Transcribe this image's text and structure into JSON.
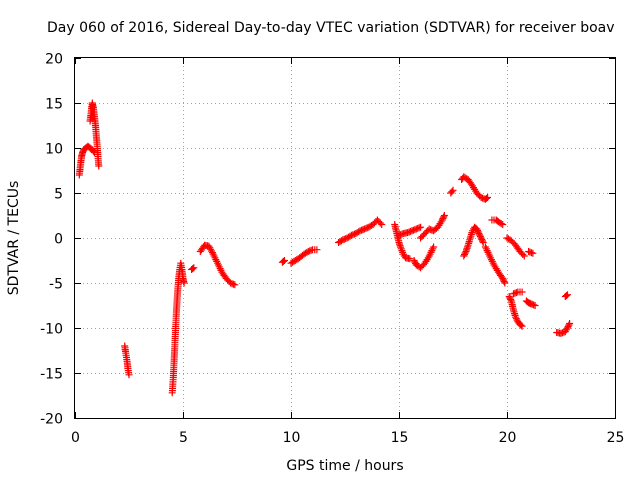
{
  "chart_data": {
    "type": "scatter",
    "title": "Day 060 of 2016, Sidereal Day-to-day VTEC variation (SDTVAR) for receiver boav",
    "xlabel": "GPS time / hours",
    "ylabel": "SDTVAR / TECUs",
    "xlim": [
      0,
      25
    ],
    "ylim": [
      -20,
      20
    ],
    "xticks": [
      0,
      5,
      10,
      15,
      20,
      25
    ],
    "yticks": [
      -20,
      -15,
      -10,
      -5,
      0,
      5,
      10,
      15,
      20
    ],
    "grid": true,
    "marker": "+",
    "color": "#ff0000",
    "series": [
      {
        "name": "SDTVAR",
        "segments": [
          [
            [
              0.2,
              7.0
            ],
            [
              0.25,
              8.0
            ],
            [
              0.3,
              9.0
            ],
            [
              0.35,
              9.5
            ],
            [
              0.4,
              9.8
            ],
            [
              0.5,
              10.0
            ],
            [
              0.6,
              10.2
            ],
            [
              0.7,
              10.0
            ],
            [
              0.8,
              9.8
            ],
            [
              0.9,
              9.5
            ]
          ],
          [
            [
              0.7,
              13.0
            ],
            [
              0.75,
              14.0
            ],
            [
              0.8,
              15.0
            ],
            [
              0.85,
              14.5
            ],
            [
              0.9,
              13.5
            ],
            [
              0.95,
              12.5
            ],
            [
              1.0,
              11.0
            ],
            [
              1.05,
              9.5
            ],
            [
              1.1,
              8.0
            ]
          ],
          [
            [
              2.3,
              -12.0
            ],
            [
              2.35,
              -12.8
            ],
            [
              2.4,
              -13.5
            ],
            [
              2.45,
              -14.5
            ],
            [
              2.5,
              -15.2
            ]
          ],
          [
            [
              4.5,
              -17.2
            ],
            [
              4.55,
              -15.5
            ],
            [
              4.6,
              -13.0
            ],
            [
              4.65,
              -10.5
            ],
            [
              4.7,
              -8.0
            ],
            [
              4.75,
              -6.0
            ],
            [
              4.8,
              -4.5
            ],
            [
              4.85,
              -3.5
            ],
            [
              4.9,
              -2.8
            ],
            [
              4.95,
              -3.5
            ],
            [
              5.0,
              -4.5
            ],
            [
              5.05,
              -5.0
            ]
          ],
          [
            [
              5.4,
              -3.5
            ],
            [
              5.5,
              -3.3
            ]
          ],
          [
            [
              5.8,
              -1.5
            ],
            [
              6.0,
              -0.8
            ],
            [
              6.2,
              -0.9
            ],
            [
              6.4,
              -1.8
            ],
            [
              6.6,
              -2.8
            ],
            [
              6.8,
              -3.8
            ],
            [
              7.0,
              -4.5
            ],
            [
              7.2,
              -5.0
            ],
            [
              7.4,
              -5.2
            ]
          ],
          [
            [
              9.6,
              -2.7
            ],
            [
              9.7,
              -2.5
            ]
          ],
          [
            [
              10.0,
              -2.8
            ],
            [
              10.2,
              -2.5
            ],
            [
              10.4,
              -2.2
            ],
            [
              10.6,
              -1.8
            ],
            [
              10.8,
              -1.5
            ],
            [
              11.0,
              -1.3
            ],
            [
              11.2,
              -1.3
            ]
          ],
          [
            [
              12.2,
              -0.5
            ],
            [
              12.4,
              -0.2
            ],
            [
              12.6,
              0.0
            ],
            [
              12.8,
              0.3
            ],
            [
              13.0,
              0.5
            ],
            [
              13.2,
              0.8
            ],
            [
              13.4,
              1.0
            ],
            [
              13.6,
              1.2
            ],
            [
              13.8,
              1.5
            ],
            [
              14.0,
              2.0
            ],
            [
              14.2,
              1.5
            ]
          ],
          [
            [
              14.8,
              1.5
            ],
            [
              14.9,
              0.5
            ],
            [
              15.0,
              -0.5
            ],
            [
              15.1,
              -1.2
            ],
            [
              15.2,
              -1.8
            ],
            [
              15.3,
              -2.2
            ],
            [
              15.5,
              -2.3
            ]
          ],
          [
            [
              15.0,
              0.3
            ],
            [
              15.2,
              0.5
            ],
            [
              15.4,
              0.6
            ],
            [
              15.6,
              0.8
            ],
            [
              15.8,
              1.0
            ],
            [
              16.0,
              1.2
            ]
          ],
          [
            [
              15.7,
              -2.5
            ],
            [
              15.8,
              -3.0
            ],
            [
              16.0,
              -3.3
            ],
            [
              16.2,
              -2.8
            ],
            [
              16.4,
              -2.0
            ],
            [
              16.6,
              -1.0
            ]
          ],
          [
            [
              16.0,
              0.0
            ],
            [
              16.2,
              0.5
            ],
            [
              16.4,
              1.0
            ],
            [
              16.6,
              0.8
            ],
            [
              16.8,
              1.2
            ],
            [
              17.0,
              2.0
            ],
            [
              17.1,
              2.5
            ]
          ],
          [
            [
              17.4,
              5.0
            ],
            [
              17.5,
              5.3
            ]
          ],
          [
            [
              17.9,
              6.5
            ],
            [
              18.0,
              6.8
            ],
            [
              18.2,
              6.5
            ],
            [
              18.4,
              5.8
            ],
            [
              18.6,
              5.0
            ],
            [
              18.8,
              4.5
            ],
            [
              19.0,
              4.3
            ],
            [
              19.1,
              4.5
            ]
          ],
          [
            [
              18.0,
              -2.0
            ],
            [
              18.1,
              -1.5
            ],
            [
              18.2,
              -0.8
            ],
            [
              18.3,
              0.0
            ],
            [
              18.4,
              0.8
            ],
            [
              18.5,
              1.2
            ],
            [
              18.6,
              1.0
            ],
            [
              18.7,
              0.5
            ],
            [
              18.8,
              0.0
            ],
            [
              18.9,
              -0.5
            ]
          ],
          [
            [
              19.0,
              -1.0
            ],
            [
              19.2,
              -2.0
            ],
            [
              19.4,
              -3.0
            ],
            [
              19.6,
              -3.8
            ],
            [
              19.8,
              -4.5
            ],
            [
              19.9,
              -5.0
            ]
          ],
          [
            [
              19.3,
              2.0
            ],
            [
              19.5,
              2.0
            ],
            [
              19.6,
              1.8
            ],
            [
              19.8,
              1.5
            ]
          ],
          [
            [
              20.0,
              0.0
            ],
            [
              20.2,
              -0.3
            ],
            [
              20.4,
              -0.8
            ],
            [
              20.6,
              -1.5
            ],
            [
              20.8,
              -2.0
            ]
          ],
          [
            [
              20.1,
              -6.5
            ],
            [
              20.2,
              -7.0
            ],
            [
              20.3,
              -8.0
            ],
            [
              20.4,
              -8.8
            ],
            [
              20.5,
              -9.3
            ],
            [
              20.6,
              -9.6
            ],
            [
              20.7,
              -9.8
            ]
          ],
          [
            [
              20.3,
              -6.2
            ],
            [
              20.5,
              -6.0
            ],
            [
              20.7,
              -6.0
            ]
          ],
          [
            [
              20.9,
              -7.0
            ],
            [
              21.0,
              -7.2
            ],
            [
              21.1,
              -7.3
            ],
            [
              21.3,
              -7.5
            ]
          ],
          [
            [
              21.0,
              -1.5
            ],
            [
              21.2,
              -1.7
            ]
          ],
          [
            [
              22.3,
              -10.5
            ],
            [
              22.5,
              -10.6
            ],
            [
              22.7,
              -10.4
            ],
            [
              22.8,
              -10.0
            ],
            [
              22.9,
              -9.5
            ]
          ],
          [
            [
              22.7,
              -6.5
            ],
            [
              22.8,
              -6.3
            ]
          ]
        ]
      }
    ]
  }
}
